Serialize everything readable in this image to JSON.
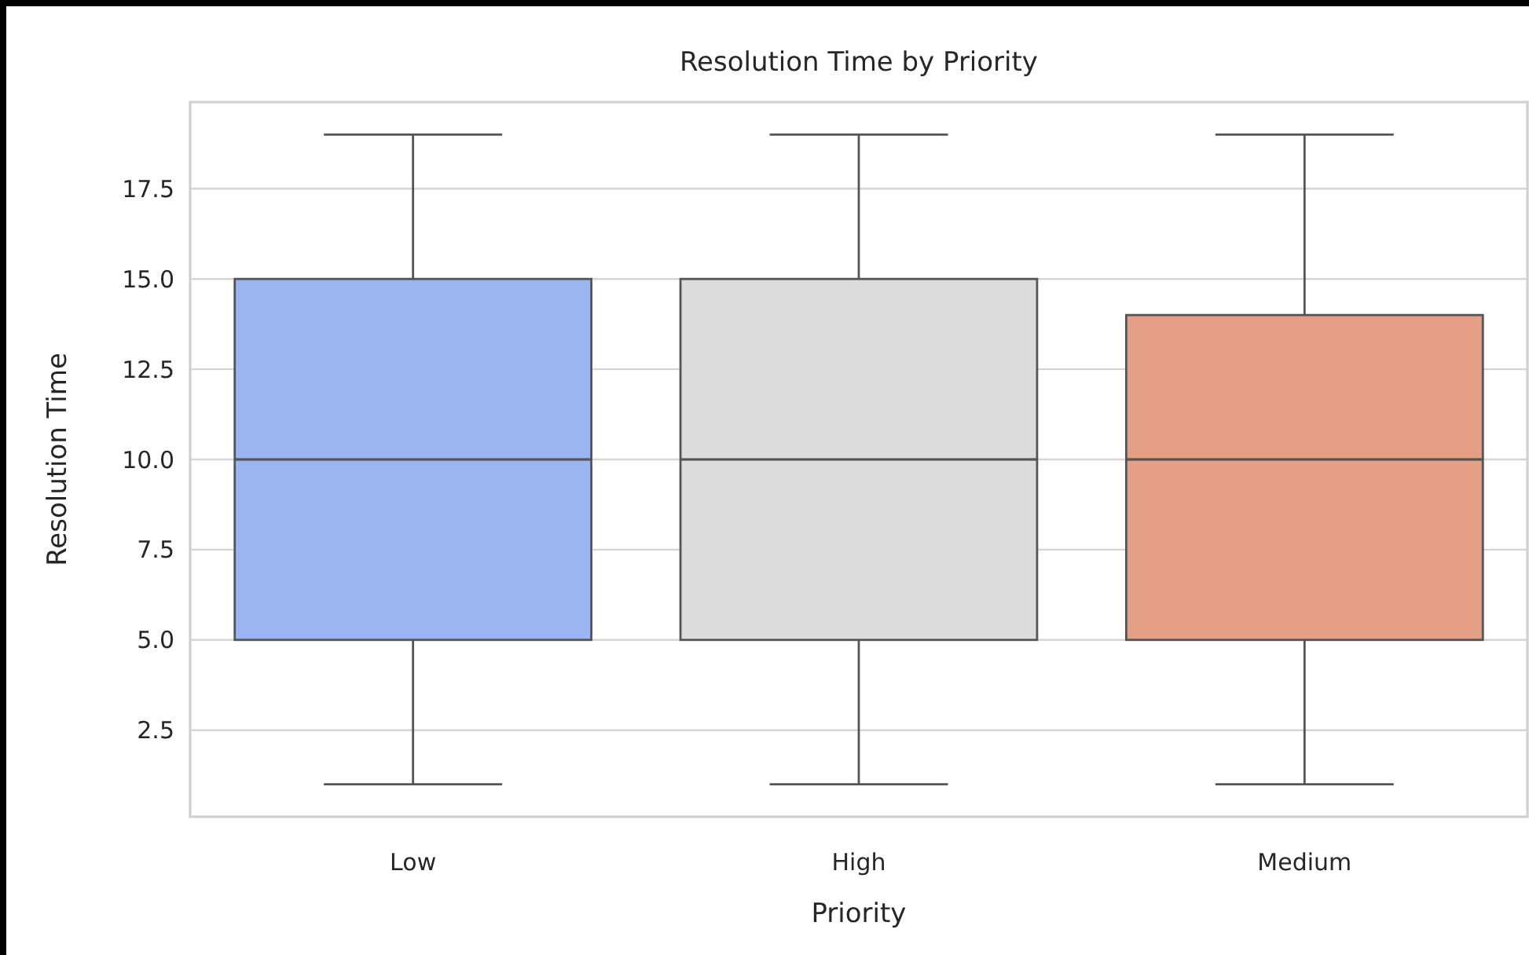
{
  "chart_data": {
    "type": "box",
    "title": "Resolution Time by Priority",
    "xlabel": "Priority",
    "ylabel": "Resolution Time",
    "categories": [
      "Low",
      "High",
      "Medium"
    ],
    "colors": [
      "#9ab5f0",
      "#dcdcdc",
      "#e49f86"
    ],
    "boxes": [
      {
        "low": 1,
        "q1": 5,
        "median": 10,
        "q3": 15,
        "high": 19
      },
      {
        "low": 1,
        "q1": 5,
        "median": 10,
        "q3": 15,
        "high": 19
      },
      {
        "low": 1,
        "q1": 5,
        "median": 10,
        "q3": 14,
        "high": 19
      }
    ],
    "ylim": [
      0.1,
      19.9
    ],
    "yticks": [
      {
        "value": 2.5,
        "label": "2.5"
      },
      {
        "value": 5,
        "label": "5.0"
      },
      {
        "value": 7.5,
        "label": "7.5"
      },
      {
        "value": 10,
        "label": "10.0"
      },
      {
        "value": 12.5,
        "label": "12.5"
      },
      {
        "value": 15,
        "label": "15.0"
      },
      {
        "value": 17.5,
        "label": "17.5"
      }
    ],
    "grid": "y"
  }
}
